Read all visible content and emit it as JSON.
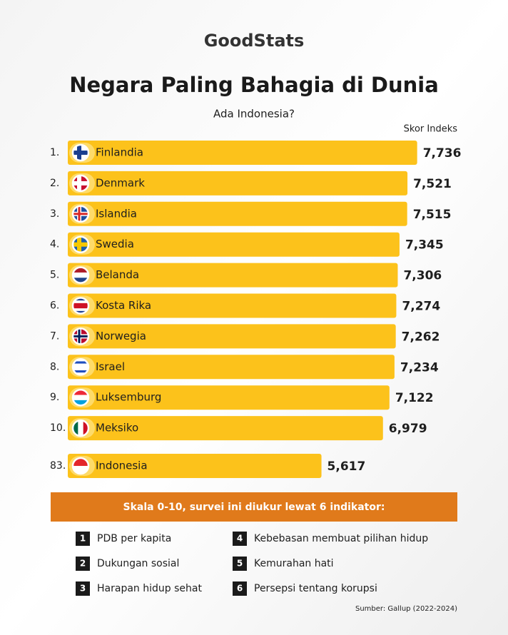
{
  "logo": "GoodStats",
  "chart_data": {
    "type": "bar",
    "orientation": "horizontal",
    "title": "Negara Paling Bahagia di Dunia",
    "subtitle": "Ada Indonesia?",
    "value_axis_label": "Skor Indeks",
    "ranks": [
      "1.",
      "2.",
      "3.",
      "4.",
      "5.",
      "6.",
      "7.",
      "8.",
      "9.",
      "10.",
      "83."
    ],
    "categories": [
      "Finlandia",
      "Denmark",
      "Islandia",
      "Swedia",
      "Belanda",
      "Kosta Rika",
      "Norwegia",
      "Israel",
      "Luksemburg",
      "Meksiko",
      "Indonesia"
    ],
    "values": [
      7.736,
      7.521,
      7.515,
      7.345,
      7.306,
      7.274,
      7.262,
      7.234,
      7.122,
      6.979,
      5.617
    ],
    "value_labels": [
      "7,736",
      "7,521",
      "7,515",
      "7,345",
      "7,306",
      "7,274",
      "7,262",
      "7,234",
      "7,122",
      "6,979",
      "5,617"
    ],
    "color": "#fcc21b"
  },
  "note": {
    "banner": "Skala 0-10, survei ini diukur lewat 6 indikator:",
    "indicators": [
      {
        "number": 1,
        "label": "PDB per kapita"
      },
      {
        "number": 2,
        "label": "Dukungan sosial"
      },
      {
        "number": 3,
        "label": "Harapan hidup sehat"
      },
      {
        "number": 4,
        "label": "Kebebasan membuat pilihan hidup"
      },
      {
        "number": 5,
        "label": "Kemurahan hati"
      },
      {
        "number": 6,
        "label": "Persepsi tentang korupsi"
      }
    ]
  },
  "source": "Sumber: Gallup (2022-2024)"
}
